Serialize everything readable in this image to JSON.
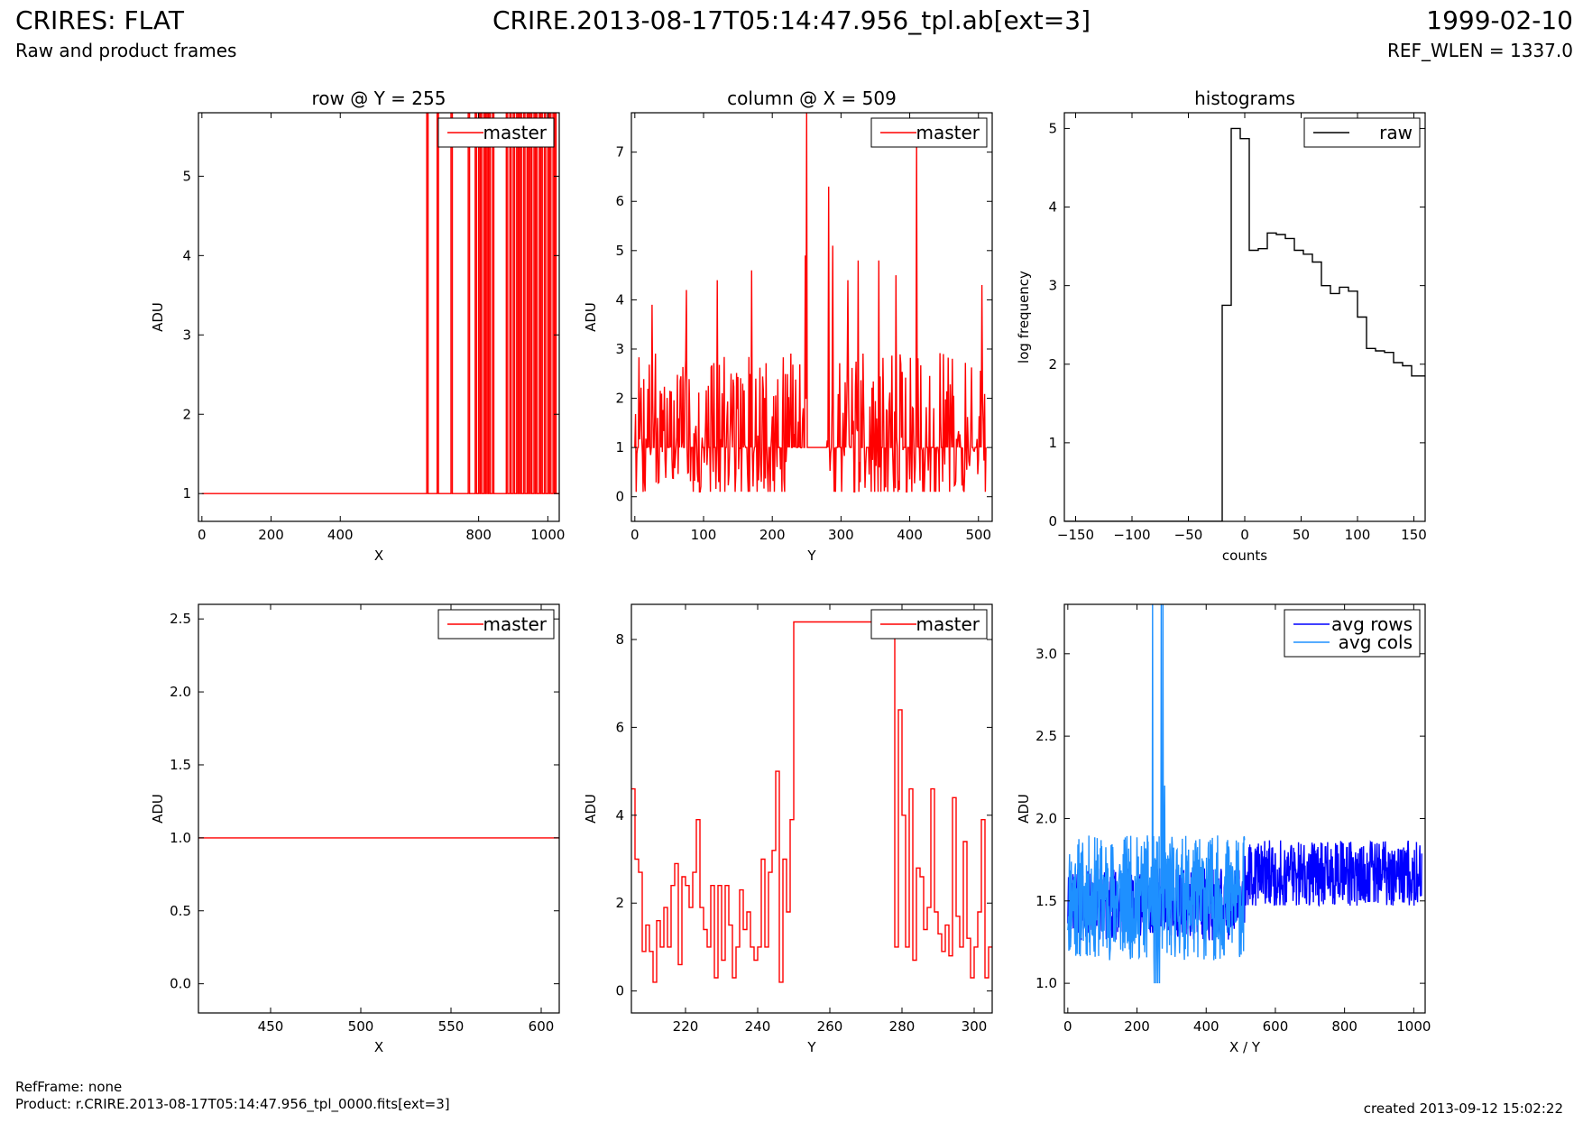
{
  "header": {
    "title": "CRIRES: FLAT",
    "subtitle": "Raw and product frames",
    "file": "CRIRE.2013-08-17T05:14:47.956_tpl.ab[ext=3]",
    "date": "1999-02-10",
    "ref_wlen": "REF_WLEN = 1337.0"
  },
  "footer": {
    "ref_frame": "RefFrame: none",
    "product": "Product: r.CRIRE.2013-08-17T05:14:47.956_tpl_0000.fits[ext=3]",
    "created": "created 2013-09-12 15:02:22"
  },
  "colors": {
    "master": "#ff0000",
    "raw": "#000000",
    "avg_rows": "#0000ff",
    "avg_cols": "#1e90ff"
  },
  "chart_data": [
    {
      "id": "row-full",
      "type": "line",
      "title": "row @ Y = 255",
      "xlabel": "X",
      "ylabel": "ADU",
      "xlim": [
        -10,
        1033
      ],
      "ylim": [
        0.65,
        5.8
      ],
      "xticks": [
        0,
        200,
        400,
        800,
        1000
      ],
      "yticks": [
        1,
        2,
        3,
        4,
        5
      ],
      "legend": {
        "position": "top-right"
      },
      "series": [
        {
          "name": "master",
          "color": "#ff0000",
          "render": "spikes",
          "baseline": 1,
          "x": [
            650,
            680,
            720,
            770,
            790,
            800,
            805,
            815,
            820,
            825,
            830,
            840,
            880,
            890,
            900,
            910,
            915,
            920,
            930,
            940,
            945,
            950,
            960,
            965,
            975,
            980,
            990,
            1000,
            1005,
            1015,
            1020
          ],
          "y": [
            5.8,
            5.8,
            5.8,
            5.8,
            5.8,
            5.8,
            5.8,
            5.8,
            5.8,
            5.8,
            5.8,
            5.8,
            5.8,
            5.8,
            5.8,
            5.8,
            5.8,
            5.8,
            5.8,
            5.8,
            5.8,
            5.8,
            5.8,
            5.8,
            5.8,
            5.8,
            5.8,
            5.8,
            5.8,
            5.8,
            5.8
          ]
        }
      ]
    },
    {
      "id": "col-full",
      "type": "line",
      "title": "column @ X = 509",
      "xlabel": "Y",
      "ylabel": "ADU",
      "xlim": [
        -5,
        520
      ],
      "ylim": [
        -0.5,
        7.8
      ],
      "xticks": [
        0,
        100,
        200,
        300,
        400,
        500
      ],
      "yticks": [
        0,
        1,
        2,
        3,
        4,
        5,
        6,
        7
      ],
      "legend": {
        "position": "top-right"
      },
      "series": [
        {
          "name": "master",
          "color": "#ff0000",
          "render": "noise",
          "seed": 7,
          "npoints": 512,
          "baseline": 1,
          "noise_amp": 1.6,
          "flat_ranges": [
            [
              250,
              278
            ]
          ],
          "spikes": [
            [
              250,
              7.8
            ],
            [
              248,
              4.9
            ],
            [
              282,
              6.3
            ],
            [
              288,
              5.1
            ],
            [
              310,
              4.4
            ],
            [
              325,
              4.8
            ],
            [
              355,
              4.8
            ],
            [
              380,
              4.5
            ],
            [
              410,
              7.2
            ],
            [
              505,
              4.3
            ],
            [
              170,
              4.6
            ],
            [
              120,
              4.4
            ],
            [
              75,
              4.2
            ],
            [
              25,
              3.9
            ]
          ]
        }
      ]
    },
    {
      "id": "hist",
      "type": "line",
      "title": "histograms",
      "xlabel": "counts",
      "ylabel": "log frequency",
      "xlim": [
        -160,
        160
      ],
      "ylim": [
        0,
        5.2
      ],
      "xticks": [
        -150,
        -100,
        -50,
        0,
        50,
        100,
        150
      ],
      "yticks": [
        0,
        1,
        2,
        3,
        4,
        5
      ],
      "legend": {
        "position": "top-right"
      },
      "series": [
        {
          "name": "raw",
          "color": "#000000",
          "render": "steps",
          "x": [
            -160,
            -20,
            -12,
            -4,
            4,
            12,
            20,
            28,
            36,
            44,
            52,
            60,
            68,
            76,
            84,
            92,
            100,
            108,
            116,
            124,
            132,
            140,
            148,
            156,
            160
          ],
          "y": [
            0,
            2.75,
            5.0,
            4.87,
            3.45,
            3.47,
            3.67,
            3.65,
            3.6,
            3.45,
            3.4,
            3.3,
            3.0,
            2.9,
            2.98,
            2.93,
            2.6,
            2.2,
            2.17,
            2.15,
            2.02,
            1.98,
            1.85,
            1.85,
            1.85
          ]
        }
      ]
    },
    {
      "id": "row-zoom",
      "type": "line",
      "title": "",
      "xlabel": "X",
      "ylabel": "ADU",
      "xlim": [
        410,
        610
      ],
      "ylim": [
        -0.2,
        2.6
      ],
      "xticks": [
        450,
        500,
        550,
        600
      ],
      "yticks": [
        0.0,
        0.5,
        1.0,
        1.5,
        2.0,
        2.5
      ],
      "ytick_labels": [
        "0.0",
        "0.5",
        "1.0",
        "1.5",
        "2.0",
        "2.5"
      ],
      "legend": {
        "position": "top-right"
      },
      "series": [
        {
          "name": "master",
          "color": "#ff0000",
          "render": "line",
          "x": [
            410,
            610
          ],
          "y": [
            1.0,
            1.0
          ]
        }
      ]
    },
    {
      "id": "col-zoom",
      "type": "line",
      "title": "",
      "xlabel": "Y",
      "ylabel": "ADU",
      "xlim": [
        205,
        305
      ],
      "ylim": [
        -0.5,
        8.8
      ],
      "xticks": [
        220,
        240,
        260,
        280,
        300
      ],
      "yticks": [
        0,
        2,
        4,
        6,
        8
      ],
      "legend": {
        "position": "top-right"
      },
      "series": [
        {
          "name": "master",
          "color": "#ff0000",
          "render": "steps",
          "x": [
            205,
            206,
            207,
            208,
            209,
            210,
            211,
            212,
            213,
            214,
            215,
            216,
            217,
            218,
            219,
            220,
            221,
            222,
            223,
            224,
            225,
            226,
            227,
            228,
            229,
            230,
            231,
            232,
            233,
            234,
            235,
            236,
            237,
            238,
            239,
            240,
            241,
            242,
            243,
            244,
            245,
            246,
            247,
            248,
            249,
            250,
            278,
            279,
            280,
            281,
            282,
            283,
            284,
            285,
            286,
            287,
            288,
            289,
            290,
            291,
            292,
            293,
            294,
            295,
            296,
            297,
            298,
            299,
            300,
            301,
            302,
            303,
            304,
            305
          ],
          "y": [
            4.6,
            3.0,
            2.7,
            0.9,
            1.5,
            0.9,
            0.2,
            1.6,
            1.0,
            1.9,
            1.0,
            2.4,
            2.9,
            0.6,
            2.6,
            2.4,
            1.9,
            2.7,
            3.9,
            1.9,
            1.4,
            1.0,
            2.4,
            0.3,
            2.4,
            0.7,
            2.4,
            1.5,
            0.3,
            1.0,
            2.3,
            1.4,
            1.8,
            1.0,
            0.7,
            1.0,
            3.0,
            1.0,
            2.7,
            3.2,
            5.0,
            0.2,
            3.0,
            1.8,
            3.9,
            8.4,
            1.0,
            6.4,
            4.0,
            1.0,
            4.6,
            0.7,
            2.8,
            2.6,
            1.4,
            1.9,
            4.6,
            1.8,
            1.3,
            0.9,
            1.5,
            0.8,
            4.4,
            1.7,
            1.0,
            3.4,
            1.2,
            0.3,
            1.0,
            1.8,
            3.9,
            0.3,
            1.0,
            1.0
          ]
        }
      ]
    },
    {
      "id": "avg",
      "type": "line",
      "title": "",
      "xlabel": "X / Y",
      "ylabel": "ADU",
      "xlim": [
        -10,
        1033
      ],
      "ylim": [
        0.82,
        3.3
      ],
      "xticks": [
        0,
        200,
        400,
        600,
        800,
        1000
      ],
      "yticks": [
        1.0,
        1.5,
        2.0,
        2.5,
        3.0
      ],
      "ytick_labels": [
        "1.0",
        "1.5",
        "2.0",
        "2.5",
        "3.0"
      ],
      "legend": {
        "position": "top-right"
      },
      "series": [
        {
          "name": "avg rows",
          "color": "#0000ff",
          "render": "noise",
          "seed": 3,
          "npoints": 1024,
          "x_start": 0,
          "x_end": 1023,
          "segments": [
            {
              "from": 0,
              "to": 511,
              "level": 1.48,
              "amp": 0.22
            },
            {
              "from": 512,
              "to": 1023,
              "level": 1.67,
              "amp": 0.2
            }
          ]
        },
        {
          "name": "avg cols",
          "color": "#1e90ff",
          "render": "noise",
          "seed": 11,
          "npoints": 512,
          "x_start": 0,
          "x_end": 511,
          "level": 1.52,
          "amp": 0.38,
          "spikes": [
            [
              245,
              3.3
            ],
            [
              250,
              1.0
            ],
            [
              255,
              1.0
            ],
            [
              260,
              1.0
            ],
            [
              270,
              3.3
            ],
            [
              275,
              3.3
            ],
            [
              280,
              2.2
            ],
            [
              265,
              1.0
            ]
          ]
        }
      ]
    }
  ]
}
